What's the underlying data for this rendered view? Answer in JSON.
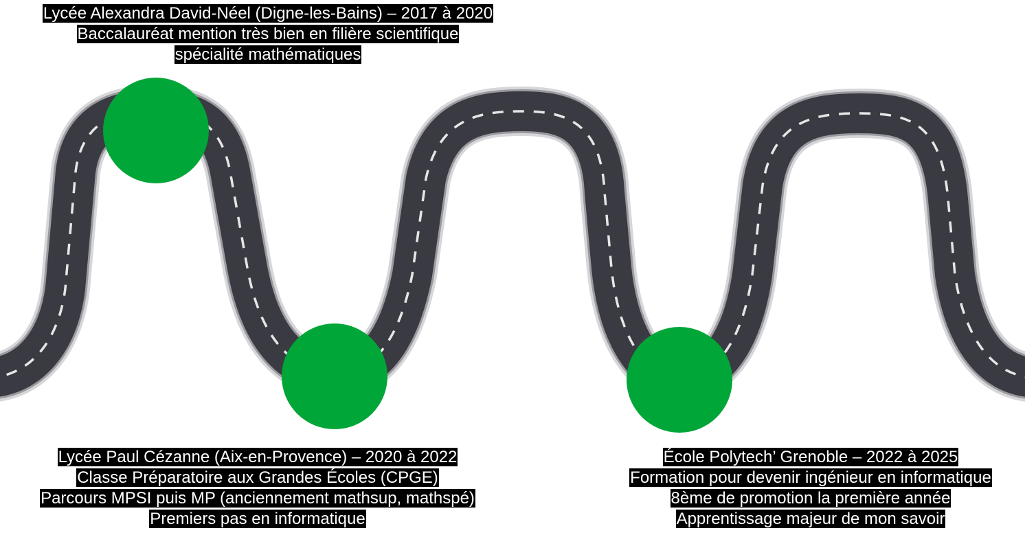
{
  "colors": {
    "milestone": "#00a637",
    "road_asphalt": "#3a3a42",
    "road_border": "#c9c9cc",
    "road_dash": "#e6e6e6",
    "caption_bg": "#000000",
    "caption_text": "#ffffff"
  },
  "milestones": [
    {
      "id": "lycee-alexandra",
      "lines": [
        "Lycée Alexandra David-Néel (Digne-les-Bains) – 2017 à 2020",
        "Baccalauréat mention très bien en filière scientifique",
        "spécialité mathématiques"
      ]
    },
    {
      "id": "lycee-cezanne",
      "lines": [
        "Lycée Paul Cézanne (Aix-en-Provence) – 2020 à 2022",
        "Classe Préparatoire aux Grandes Écoles (CPGE)",
        "Parcours MPSI puis MP (anciennement mathsup, mathspé)",
        "Premiers pas en informatique"
      ]
    },
    {
      "id": "polytech",
      "lines": [
        "École Polytech’ Grenoble – 2022 à 2025",
        "Formation pour devenir ingénieur en informatique",
        "8ème de promotion la première année",
        "Apprentissage majeur de mon savoir"
      ]
    }
  ]
}
